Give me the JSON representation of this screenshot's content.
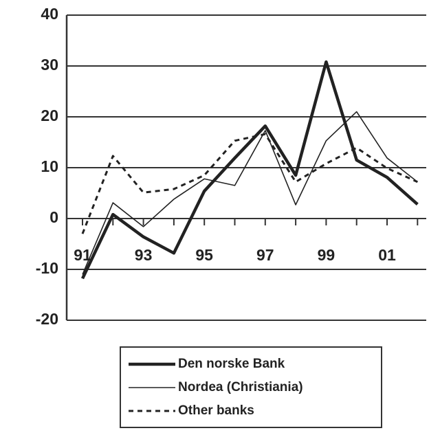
{
  "chart_data": {
    "type": "line",
    "categories": [
      "91",
      null,
      "93",
      null,
      "95",
      null,
      "97",
      null,
      "99",
      null,
      "01",
      null
    ],
    "series": [
      {
        "name": "Den norske Bank",
        "color": "#222222",
        "style": "thick",
        "values": [
          -11.8,
          0.8,
          -3.6,
          -6.8,
          5.4,
          11.9,
          18.2,
          8.5,
          30.8,
          11.5,
          8.1,
          2.8
        ]
      },
      {
        "name": "Nordea (Christiania)",
        "color": "#222222",
        "style": "thin",
        "values": [
          -11,
          3.1,
          -1.6,
          3.8,
          7.8,
          6.5,
          17.3,
          2.7,
          15.3,
          21,
          11.9,
          7.2
        ]
      },
      {
        "name": "Other banks",
        "color": "#222222",
        "style": "dashed",
        "values": [
          -3,
          12.3,
          5.1,
          5.8,
          8.5,
          15.3,
          16.6,
          7.2,
          10.8,
          13.9,
          9.9,
          7.2
        ]
      }
    ],
    "ylim": [
      -20,
      40
    ],
    "yticks": [
      -20,
      -10,
      0,
      10,
      20,
      30,
      40
    ],
    "grid": true,
    "legend": "bottom"
  }
}
